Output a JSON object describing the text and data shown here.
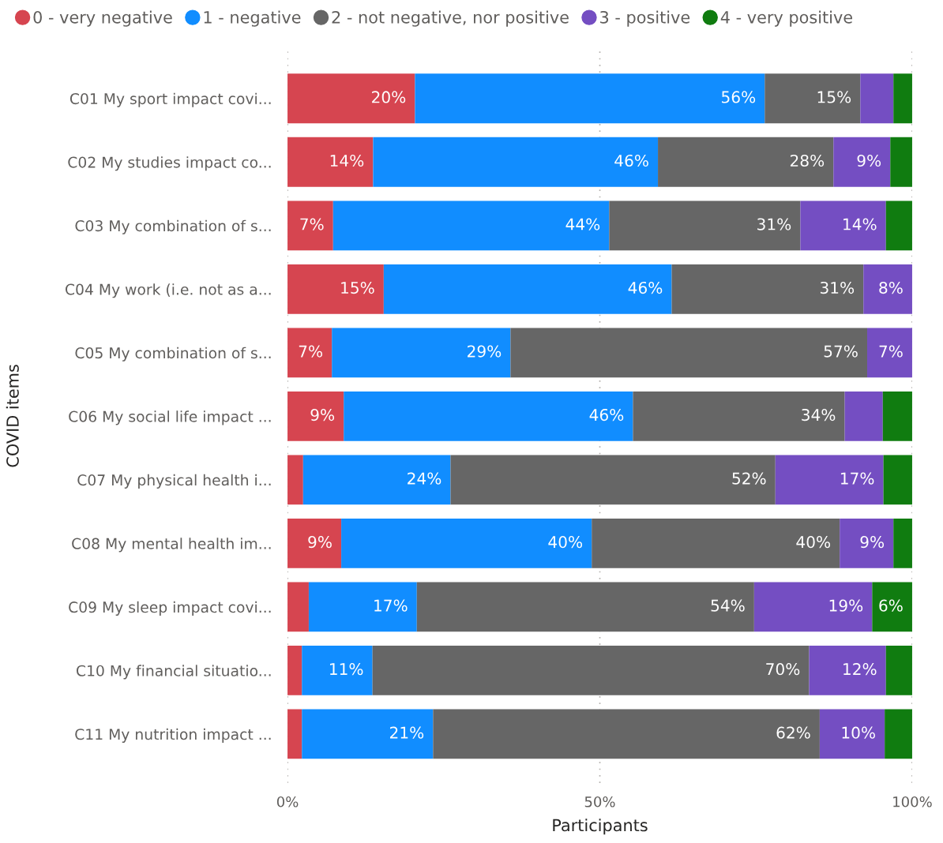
{
  "chart_data": {
    "type": "bar",
    "orientation": "horizontal",
    "stacked": true,
    "categories": [
      "C01 My sport impact covi...",
      "C02 My studies impact co...",
      "C03 My combination of s...",
      "C04 My work (i.e. not as a...",
      "C05 My combination of s...",
      "C06 My social life impact ...",
      "C07 My physical health i...",
      "C08 My mental health im...",
      "C09 My sleep impact covi...",
      "C10 My financial situatio...",
      "C11 My nutrition impact ..."
    ],
    "series": [
      {
        "name": "0 - very negative",
        "color": "#d64550",
        "values": [
          20.4,
          13.7,
          7.3,
          15.4,
          7.1,
          9.0,
          2.5,
          8.6,
          3.4,
          2.3,
          2.3
        ],
        "value_labels": [
          "20%",
          "14%",
          "7%",
          "15%",
          "7%",
          "9%",
          null,
          "9%",
          null,
          null,
          null
        ]
      },
      {
        "name": "1 - negative",
        "color": "#118dff",
        "values": [
          56.0,
          45.6,
          44.2,
          46.1,
          28.6,
          46.3,
          23.6,
          40.1,
          17.3,
          11.3,
          21.0
        ],
        "value_labels": [
          "56%",
          "46%",
          "44%",
          "46%",
          "29%",
          "46%",
          "24%",
          "40%",
          "17%",
          "11%",
          "21%"
        ]
      },
      {
        "name": "2 - not negative, nor positive",
        "color": "#666666",
        "values": [
          15.3,
          28.1,
          30.6,
          30.7,
          57.1,
          33.9,
          52.0,
          39.7,
          54.0,
          69.9,
          61.9
        ],
        "value_labels": [
          "15%",
          "28%",
          "31%",
          "31%",
          "57%",
          "34%",
          "52%",
          "40%",
          "54%",
          "70%",
          "62%"
        ]
      },
      {
        "name": "3 - positive",
        "color": "#744ec2",
        "values": [
          5.3,
          9.1,
          13.7,
          7.8,
          7.2,
          6.1,
          17.3,
          8.6,
          18.9,
          12.3,
          10.4
        ],
        "value_labels": [
          null,
          "9%",
          "14%",
          "8%",
          "7%",
          null,
          "17%",
          "9%",
          "19%",
          "12%",
          "10%"
        ]
      },
      {
        "name": "4 - very positive",
        "color": "#107c10",
        "values": [
          3.0,
          3.5,
          4.2,
          null,
          null,
          4.7,
          4.6,
          3.0,
          6.4,
          4.2,
          4.4
        ],
        "value_labels": [
          null,
          null,
          null,
          null,
          null,
          null,
          null,
          null,
          "6%",
          null,
          null
        ]
      }
    ],
    "xlim": [
      0,
      100
    ],
    "xticks": [
      {
        "value": 0,
        "label": "0%"
      },
      {
        "value": 50,
        "label": "50%"
      },
      {
        "value": 100,
        "label": "100%"
      }
    ],
    "xlabel": "Participants",
    "ylabel": "COVID items",
    "grid": "x",
    "legend": "top left",
    "marker": "circle"
  }
}
